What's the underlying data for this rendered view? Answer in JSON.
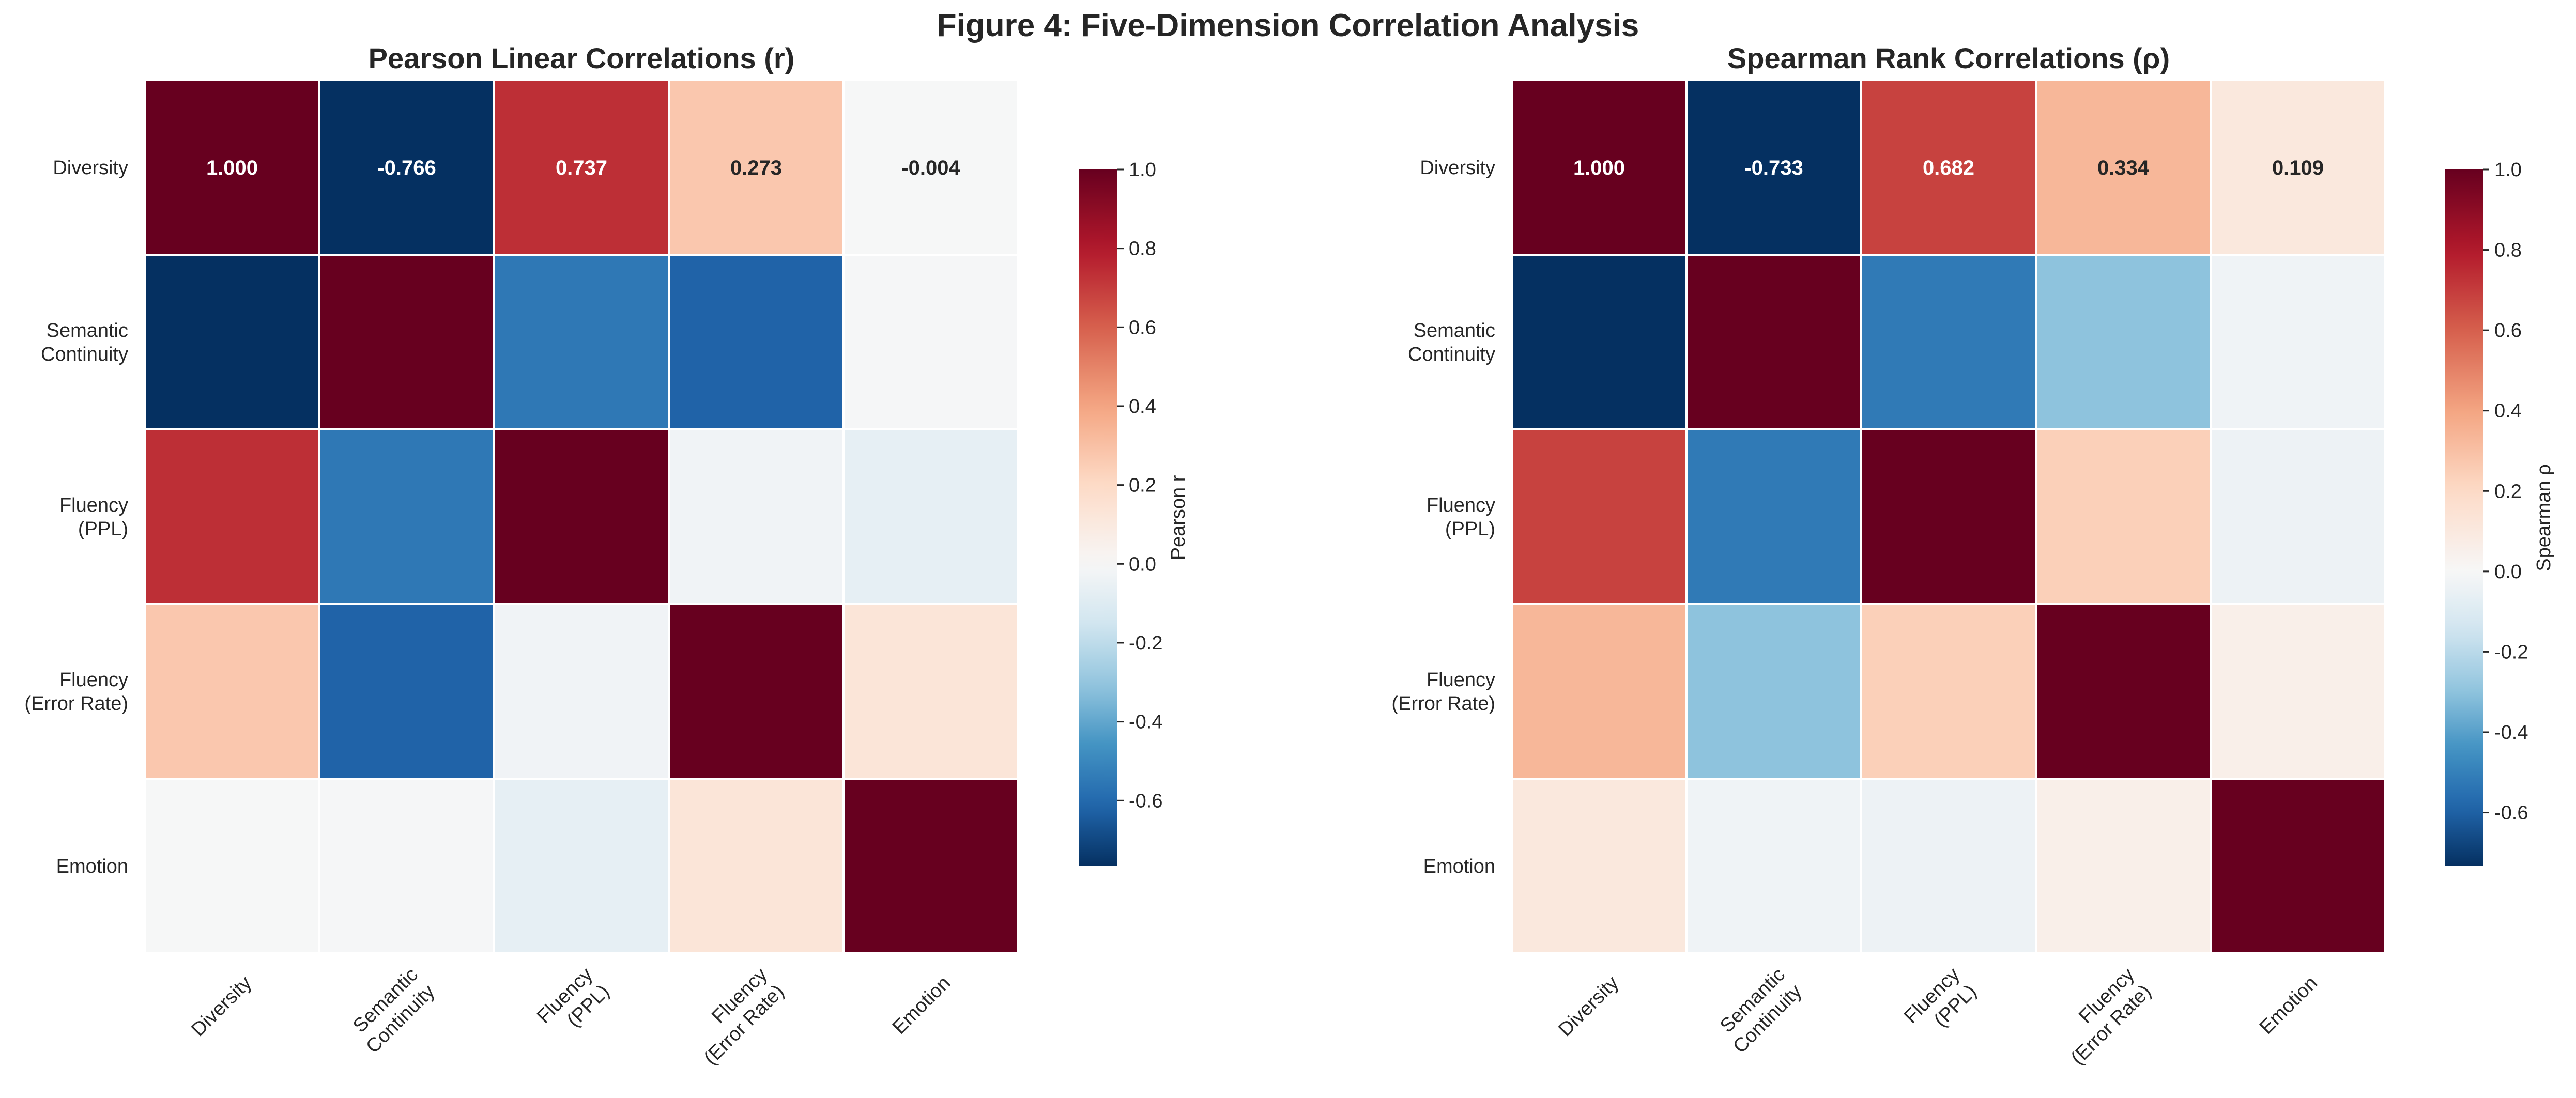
{
  "figure": {
    "title": "Figure 4: Five-Dimension Correlation Analysis"
  },
  "chart_data": [
    {
      "type": "heatmap",
      "title": "Pearson Linear Correlations (r)",
      "labels": [
        "Diversity",
        "Semantic\nContinuity",
        "Fluency\n(PPL)",
        "Fluency\n(Error Rate)",
        "Emotion"
      ],
      "matrix": [
        [
          1.0,
          -0.766,
          0.737,
          0.273,
          -0.004
        ],
        [
          -0.766,
          1.0,
          -0.55,
          -0.62,
          -0.01
        ],
        [
          0.737,
          -0.55,
          1.0,
          -0.03,
          -0.07
        ],
        [
          0.273,
          -0.62,
          -0.03,
          1.0,
          0.13
        ],
        [
          -0.004,
          -0.01,
          -0.07,
          0.13,
          1.0
        ]
      ],
      "annotated_row": 0,
      "annotations": [
        "1.000",
        "-0.766",
        "0.737",
        "0.273",
        "-0.004"
      ],
      "colorbar": {
        "label": "Pearson r",
        "range": [
          -0.766,
          1.0
        ],
        "ticks": [
          1.0,
          0.8,
          0.6,
          0.4,
          0.2,
          0.0,
          -0.2,
          -0.4,
          -0.6
        ],
        "tick_labels": [
          "1.0",
          "0.8",
          "0.6",
          "0.4",
          "0.2",
          "0.0",
          "-0.2",
          "-0.4",
          "-0.6"
        ]
      },
      "colormap": "RdBu_r",
      "grid": false
    },
    {
      "type": "heatmap",
      "title": "Spearman Rank Correlations (ρ)",
      "labels": [
        "Diversity",
        "Semantic\nContinuity",
        "Fluency\n(PPL)",
        "Fluency\n(Error Rate)",
        "Emotion"
      ],
      "matrix": [
        [
          1.0,
          -0.733,
          0.682,
          0.334,
          0.109
        ],
        [
          -0.733,
          1.0,
          -0.52,
          -0.3,
          -0.03
        ],
        [
          0.682,
          -0.52,
          1.0,
          0.24,
          -0.04
        ],
        [
          0.334,
          -0.3,
          0.24,
          1.0,
          0.06
        ],
        [
          0.109,
          -0.03,
          -0.04,
          0.06,
          1.0
        ]
      ],
      "annotated_row": 0,
      "annotations": [
        "1.000",
        "-0.733",
        "0.682",
        "0.334",
        "0.109"
      ],
      "colorbar": {
        "label": "Spearman ρ",
        "range": [
          -0.733,
          1.0
        ],
        "ticks": [
          1.0,
          0.8,
          0.6,
          0.4,
          0.2,
          0.0,
          -0.2,
          -0.4,
          -0.6
        ],
        "tick_labels": [
          "1.0",
          "0.8",
          "0.6",
          "0.4",
          "0.2",
          "0.0",
          "-0.2",
          "-0.4",
          "-0.6"
        ]
      },
      "colormap": "RdBu_r",
      "grid": false
    }
  ]
}
